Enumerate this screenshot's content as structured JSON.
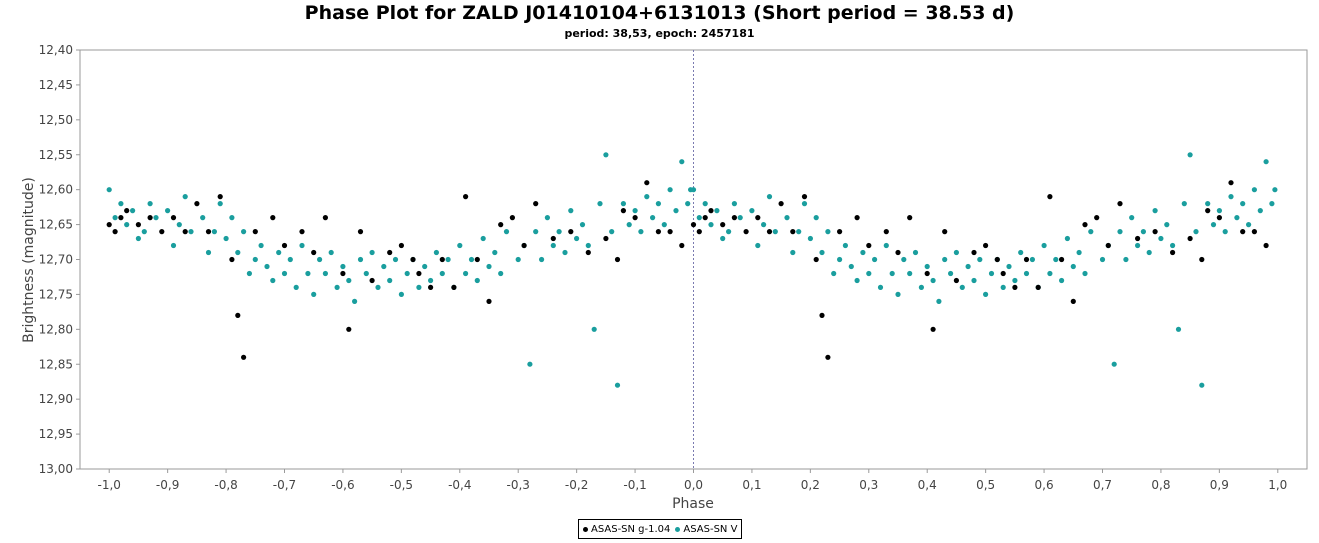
{
  "chart_data": {
    "type": "scatter",
    "title": "Phase Plot for ZALD J01410104+6131013 (Short period = 38.53 d)",
    "subtitle": "period: 38,53, epoch: 2457181",
    "xlabel": "Phase",
    "ylabel": "Brightness (magnitude)",
    "xlim": [
      -1.05,
      1.05
    ],
    "ylim": [
      12.4,
      13.0
    ],
    "y_inverted": true,
    "x_ticks": [
      "-1,0",
      "-0,9",
      "-0,8",
      "-0,7",
      "-0,6",
      "-0,5",
      "-0,4",
      "-0,3",
      "-0,2",
      "-0,1",
      "0,0",
      "0,1",
      "0,2",
      "0,3",
      "0,4",
      "0,5",
      "0,6",
      "0,7",
      "0,8",
      "0,9",
      "1,0"
    ],
    "y_ticks": [
      "12,40",
      "12,45",
      "12,50",
      "12,55",
      "12,60",
      "12,65",
      "12,70",
      "12,75",
      "12,80",
      "12,85",
      "12,90",
      "12,95",
      "13,00"
    ],
    "grid": false,
    "zero_line": true,
    "legend_position": "bottom-center",
    "series": [
      {
        "name": "ASAS-SN g-1.04",
        "color": "#000000",
        "points": [
          [
            0.0,
            12.65
          ],
          [
            0.01,
            12.66
          ],
          [
            0.02,
            12.64
          ],
          [
            0.03,
            12.63
          ],
          [
            0.05,
            12.65
          ],
          [
            0.07,
            12.64
          ],
          [
            0.09,
            12.66
          ],
          [
            0.11,
            12.64
          ],
          [
            0.13,
            12.66
          ],
          [
            0.15,
            12.62
          ],
          [
            0.17,
            12.66
          ],
          [
            0.19,
            12.61
          ],
          [
            0.21,
            12.7
          ],
          [
            0.22,
            12.78
          ],
          [
            0.23,
            12.84
          ],
          [
            0.25,
            12.66
          ],
          [
            0.28,
            12.64
          ],
          [
            0.3,
            12.68
          ],
          [
            0.33,
            12.66
          ],
          [
            0.35,
            12.69
          ],
          [
            0.37,
            12.64
          ],
          [
            0.4,
            12.72
          ],
          [
            0.41,
            12.8
          ],
          [
            0.43,
            12.66
          ],
          [
            0.45,
            12.73
          ],
          [
            0.48,
            12.69
          ],
          [
            0.5,
            12.68
          ],
          [
            0.52,
            12.7
          ],
          [
            0.53,
            12.72
          ],
          [
            0.55,
            12.74
          ],
          [
            0.57,
            12.7
          ],
          [
            0.59,
            12.74
          ],
          [
            0.61,
            12.61
          ],
          [
            0.63,
            12.7
          ],
          [
            0.65,
            12.76
          ],
          [
            0.67,
            12.65
          ],
          [
            0.69,
            12.64
          ],
          [
            0.71,
            12.68
          ],
          [
            0.73,
            12.62
          ],
          [
            0.76,
            12.67
          ],
          [
            0.79,
            12.66
          ],
          [
            0.82,
            12.69
          ],
          [
            0.85,
            12.67
          ],
          [
            0.87,
            12.7
          ],
          [
            0.88,
            12.63
          ],
          [
            0.9,
            12.64
          ],
          [
            0.92,
            12.59
          ],
          [
            0.94,
            12.66
          ],
          [
            0.96,
            12.66
          ],
          [
            0.98,
            12.68
          ],
          [
            -1.0,
            12.65
          ],
          [
            -0.99,
            12.66
          ],
          [
            -0.98,
            12.64
          ],
          [
            -0.97,
            12.63
          ],
          [
            -0.95,
            12.65
          ],
          [
            -0.93,
            12.64
          ],
          [
            -0.91,
            12.66
          ],
          [
            -0.89,
            12.64
          ],
          [
            -0.87,
            12.66
          ],
          [
            -0.85,
            12.62
          ],
          [
            -0.83,
            12.66
          ],
          [
            -0.81,
            12.61
          ],
          [
            -0.79,
            12.7
          ],
          [
            -0.78,
            12.78
          ],
          [
            -0.77,
            12.84
          ],
          [
            -0.75,
            12.66
          ],
          [
            -0.72,
            12.64
          ],
          [
            -0.7,
            12.68
          ],
          [
            -0.67,
            12.66
          ],
          [
            -0.65,
            12.69
          ],
          [
            -0.63,
            12.64
          ],
          [
            -0.6,
            12.72
          ],
          [
            -0.59,
            12.8
          ],
          [
            -0.57,
            12.66
          ],
          [
            -0.55,
            12.73
          ],
          [
            -0.52,
            12.69
          ],
          [
            -0.5,
            12.68
          ],
          [
            -0.48,
            12.7
          ],
          [
            -0.47,
            12.72
          ],
          [
            -0.45,
            12.74
          ],
          [
            -0.43,
            12.7
          ],
          [
            -0.41,
            12.74
          ],
          [
            -0.39,
            12.61
          ],
          [
            -0.37,
            12.7
          ],
          [
            -0.35,
            12.76
          ],
          [
            -0.33,
            12.65
          ],
          [
            -0.31,
            12.64
          ],
          [
            -0.29,
            12.68
          ],
          [
            -0.27,
            12.62
          ],
          [
            -0.24,
            12.67
          ],
          [
            -0.21,
            12.66
          ],
          [
            -0.18,
            12.69
          ],
          [
            -0.15,
            12.67
          ],
          [
            -0.13,
            12.7
          ],
          [
            -0.12,
            12.63
          ],
          [
            -0.1,
            12.64
          ],
          [
            -0.08,
            12.59
          ],
          [
            -0.06,
            12.66
          ],
          [
            -0.04,
            12.66
          ],
          [
            -0.02,
            12.68
          ]
        ]
      },
      {
        "name": "ASAS-SN V",
        "color": "#1a9e9e",
        "points": [
          [
            0.0,
            12.6
          ],
          [
            0.01,
            12.64
          ],
          [
            0.02,
            12.62
          ],
          [
            0.03,
            12.65
          ],
          [
            0.04,
            12.63
          ],
          [
            0.05,
            12.67
          ],
          [
            0.06,
            12.66
          ],
          [
            0.07,
            12.62
          ],
          [
            0.08,
            12.64
          ],
          [
            0.1,
            12.63
          ],
          [
            0.11,
            12.68
          ],
          [
            0.12,
            12.65
          ],
          [
            0.13,
            12.61
          ],
          [
            0.14,
            12.66
          ],
          [
            0.16,
            12.64
          ],
          [
            0.17,
            12.69
          ],
          [
            0.18,
            12.66
          ],
          [
            0.19,
            12.62
          ],
          [
            0.2,
            12.67
          ],
          [
            0.21,
            12.64
          ],
          [
            0.22,
            12.69
          ],
          [
            0.23,
            12.66
          ],
          [
            0.24,
            12.72
          ],
          [
            0.25,
            12.7
          ],
          [
            0.26,
            12.68
          ],
          [
            0.27,
            12.71
          ],
          [
            0.28,
            12.73
          ],
          [
            0.29,
            12.69
          ],
          [
            0.3,
            12.72
          ],
          [
            0.31,
            12.7
          ],
          [
            0.32,
            12.74
          ],
          [
            0.33,
            12.68
          ],
          [
            0.34,
            12.72
          ],
          [
            0.35,
            12.75
          ],
          [
            0.36,
            12.7
          ],
          [
            0.37,
            12.72
          ],
          [
            0.38,
            12.69
          ],
          [
            0.39,
            12.74
          ],
          [
            0.4,
            12.71
          ],
          [
            0.41,
            12.73
          ],
          [
            0.42,
            12.76
          ],
          [
            0.43,
            12.7
          ],
          [
            0.44,
            12.72
          ],
          [
            0.45,
            12.69
          ],
          [
            0.46,
            12.74
          ],
          [
            0.47,
            12.71
          ],
          [
            0.48,
            12.73
          ],
          [
            0.49,
            12.7
          ],
          [
            0.5,
            12.75
          ],
          [
            0.51,
            12.72
          ],
          [
            0.52,
            12.7
          ],
          [
            0.53,
            12.74
          ],
          [
            0.54,
            12.71
          ],
          [
            0.55,
            12.73
          ],
          [
            0.56,
            12.69
          ],
          [
            0.57,
            12.72
          ],
          [
            0.58,
            12.7
          ],
          [
            0.59,
            12.74
          ],
          [
            0.6,
            12.68
          ],
          [
            0.61,
            12.72
          ],
          [
            0.62,
            12.7
          ],
          [
            0.63,
            12.73
          ],
          [
            0.64,
            12.67
          ],
          [
            0.65,
            12.71
          ],
          [
            0.66,
            12.69
          ],
          [
            0.67,
            12.72
          ],
          [
            0.68,
            12.66
          ],
          [
            0.7,
            12.7
          ],
          [
            0.71,
            12.68
          ],
          [
            0.72,
            12.85
          ],
          [
            0.73,
            12.66
          ],
          [
            0.74,
            12.7
          ],
          [
            0.75,
            12.64
          ],
          [
            0.76,
            12.68
          ],
          [
            0.77,
            12.66
          ],
          [
            0.78,
            12.69
          ],
          [
            0.79,
            12.63
          ],
          [
            0.8,
            12.67
          ],
          [
            0.81,
            12.65
          ],
          [
            0.82,
            12.68
          ],
          [
            0.83,
            12.8
          ],
          [
            0.84,
            12.62
          ],
          [
            0.85,
            12.55
          ],
          [
            0.86,
            12.66
          ],
          [
            0.87,
            12.88
          ],
          [
            0.88,
            12.62
          ],
          [
            0.89,
            12.65
          ],
          [
            0.9,
            12.63
          ],
          [
            0.91,
            12.66
          ],
          [
            0.92,
            12.61
          ],
          [
            0.93,
            12.64
          ],
          [
            0.94,
            12.62
          ],
          [
            0.95,
            12.65
          ],
          [
            0.96,
            12.6
          ],
          [
            0.97,
            12.63
          ],
          [
            0.98,
            12.56
          ],
          [
            0.99,
            12.62
          ],
          [
            0.995,
            12.6
          ],
          [
            -1.0,
            12.6
          ],
          [
            -0.99,
            12.64
          ],
          [
            -0.98,
            12.62
          ],
          [
            -0.97,
            12.65
          ],
          [
            -0.96,
            12.63
          ],
          [
            -0.95,
            12.67
          ],
          [
            -0.94,
            12.66
          ],
          [
            -0.93,
            12.62
          ],
          [
            -0.92,
            12.64
          ],
          [
            -0.9,
            12.63
          ],
          [
            -0.89,
            12.68
          ],
          [
            -0.88,
            12.65
          ],
          [
            -0.87,
            12.61
          ],
          [
            -0.86,
            12.66
          ],
          [
            -0.84,
            12.64
          ],
          [
            -0.83,
            12.69
          ],
          [
            -0.82,
            12.66
          ],
          [
            -0.81,
            12.62
          ],
          [
            -0.8,
            12.67
          ],
          [
            -0.79,
            12.64
          ],
          [
            -0.78,
            12.69
          ],
          [
            -0.77,
            12.66
          ],
          [
            -0.76,
            12.72
          ],
          [
            -0.75,
            12.7
          ],
          [
            -0.74,
            12.68
          ],
          [
            -0.73,
            12.71
          ],
          [
            -0.72,
            12.73
          ],
          [
            -0.71,
            12.69
          ],
          [
            -0.7,
            12.72
          ],
          [
            -0.69,
            12.7
          ],
          [
            -0.68,
            12.74
          ],
          [
            -0.67,
            12.68
          ],
          [
            -0.66,
            12.72
          ],
          [
            -0.65,
            12.75
          ],
          [
            -0.64,
            12.7
          ],
          [
            -0.63,
            12.72
          ],
          [
            -0.62,
            12.69
          ],
          [
            -0.61,
            12.74
          ],
          [
            -0.6,
            12.71
          ],
          [
            -0.59,
            12.73
          ],
          [
            -0.58,
            12.76
          ],
          [
            -0.57,
            12.7
          ],
          [
            -0.56,
            12.72
          ],
          [
            -0.55,
            12.69
          ],
          [
            -0.54,
            12.74
          ],
          [
            -0.53,
            12.71
          ],
          [
            -0.52,
            12.73
          ],
          [
            -0.51,
            12.7
          ],
          [
            -0.5,
            12.75
          ],
          [
            -0.49,
            12.72
          ],
          [
            -0.48,
            12.7
          ],
          [
            -0.47,
            12.74
          ],
          [
            -0.46,
            12.71
          ],
          [
            -0.45,
            12.73
          ],
          [
            -0.44,
            12.69
          ],
          [
            -0.43,
            12.72
          ],
          [
            -0.42,
            12.7
          ],
          [
            -0.41,
            12.74
          ],
          [
            -0.4,
            12.68
          ],
          [
            -0.39,
            12.72
          ],
          [
            -0.38,
            12.7
          ],
          [
            -0.37,
            12.73
          ],
          [
            -0.36,
            12.67
          ],
          [
            -0.35,
            12.71
          ],
          [
            -0.34,
            12.69
          ],
          [
            -0.33,
            12.72
          ],
          [
            -0.32,
            12.66
          ],
          [
            -0.3,
            12.7
          ],
          [
            -0.29,
            12.68
          ],
          [
            -0.28,
            12.85
          ],
          [
            -0.27,
            12.66
          ],
          [
            -0.26,
            12.7
          ],
          [
            -0.25,
            12.64
          ],
          [
            -0.24,
            12.68
          ],
          [
            -0.23,
            12.66
          ],
          [
            -0.22,
            12.69
          ],
          [
            -0.21,
            12.63
          ],
          [
            -0.2,
            12.67
          ],
          [
            -0.19,
            12.65
          ],
          [
            -0.18,
            12.68
          ],
          [
            -0.17,
            12.8
          ],
          [
            -0.16,
            12.62
          ],
          [
            -0.15,
            12.55
          ],
          [
            -0.14,
            12.66
          ],
          [
            -0.13,
            12.88
          ],
          [
            -0.12,
            12.62
          ],
          [
            -0.11,
            12.65
          ],
          [
            -0.1,
            12.63
          ],
          [
            -0.09,
            12.66
          ],
          [
            -0.08,
            12.61
          ],
          [
            -0.07,
            12.64
          ],
          [
            -0.06,
            12.62
          ],
          [
            -0.05,
            12.65
          ],
          [
            -0.04,
            12.6
          ],
          [
            -0.03,
            12.63
          ],
          [
            -0.02,
            12.56
          ],
          [
            -0.01,
            12.62
          ],
          [
            -0.005,
            12.6
          ]
        ]
      }
    ]
  }
}
